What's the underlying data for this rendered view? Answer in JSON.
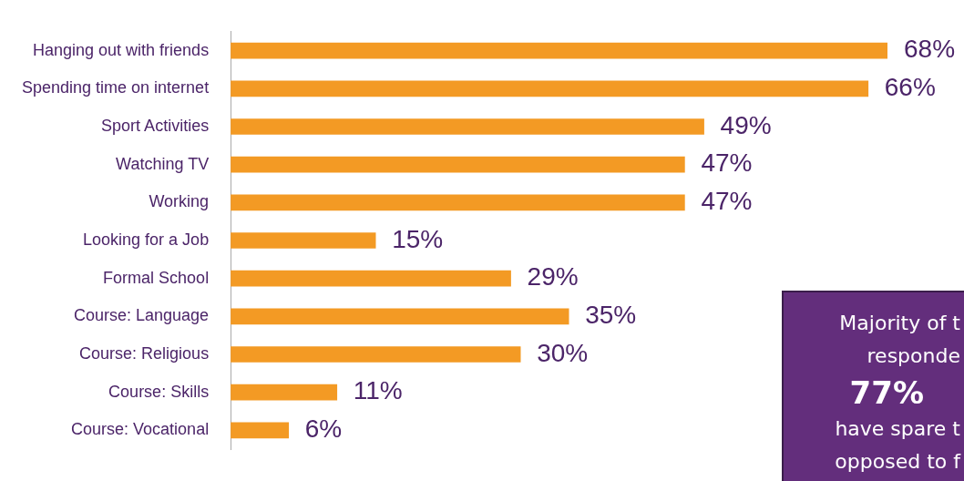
{
  "chart_data": {
    "type": "bar",
    "orientation": "horizontal",
    "legend": false,
    "categories": [
      "Hanging out with friends",
      "Spending time on internet",
      "Sport Activities",
      "Watching TV",
      "Working",
      "Looking for a Job",
      "Formal School",
      "Course: Language",
      "Course: Religious",
      "Course: Skills",
      "Course: Vocational"
    ],
    "values": [
      68,
      66,
      49,
      47,
      47,
      15,
      29,
      35,
      30,
      11,
      6
    ],
    "value_labels": [
      "68%",
      "66%",
      "49%",
      "47%",
      "47%",
      "15%",
      "29%",
      "35%",
      "30%",
      "11%",
      "6%"
    ],
    "color": "#f39a24",
    "annotations": [
      "Majority of t",
      "responde",
      "77%",
      "have spare t",
      "opposed to f"
    ]
  }
}
